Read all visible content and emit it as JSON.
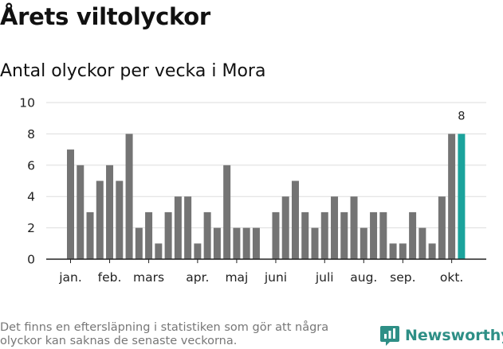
{
  "title": "Årets viltolyckor",
  "subtitle": "Antal olyckor per vecka i Mora",
  "footnote": "Det finns en eftersläpning i statistiken som gör att några olyckor kan saknas de senaste veckorna.",
  "brand": {
    "name": "Newsworthy",
    "icon": "newsworthy-logo-icon",
    "color": "#2e8f86"
  },
  "colors": {
    "bar": "#747474",
    "highlight": "#1ba39c",
    "grid": "#dddddd",
    "axis": "#222222"
  },
  "chart_data": {
    "type": "bar",
    "title": "Antal olyckor per vecka i Mora",
    "xlabel": "",
    "ylabel": "",
    "ylim": [
      0,
      10
    ],
    "yticks": [
      0,
      2,
      4,
      6,
      8,
      10
    ],
    "grid": true,
    "month_ticks": [
      {
        "label": "jan.",
        "week": 1
      },
      {
        "label": "feb.",
        "week": 5
      },
      {
        "label": "mars",
        "week": 9
      },
      {
        "label": "apr.",
        "week": 14
      },
      {
        "label": "maj",
        "week": 18
      },
      {
        "label": "juni",
        "week": 22
      },
      {
        "label": "juli",
        "week": 27
      },
      {
        "label": "aug.",
        "week": 31
      },
      {
        "label": "sep.",
        "week": 35
      },
      {
        "label": "okt.",
        "week": 40
      }
    ],
    "weeks": [
      1,
      2,
      3,
      4,
      5,
      6,
      7,
      8,
      9,
      10,
      11,
      12,
      13,
      14,
      15,
      16,
      17,
      18,
      19,
      20,
      21,
      22,
      23,
      24,
      25,
      26,
      27,
      28,
      29,
      30,
      31,
      32,
      33,
      34,
      35,
      36,
      37,
      38,
      39,
      40,
      41
    ],
    "values": [
      7,
      6,
      3,
      5,
      6,
      5,
      8,
      2,
      3,
      1,
      3,
      4,
      4,
      1,
      3,
      2,
      6,
      2,
      2,
      2,
      0,
      3,
      4,
      5,
      3,
      2,
      3,
      4,
      3,
      4,
      2,
      3,
      3,
      1,
      1,
      3,
      2,
      1,
      4,
      8,
      8
    ],
    "highlight_week": 41,
    "data_labels": [
      {
        "week": 41,
        "text": "8"
      }
    ]
  }
}
